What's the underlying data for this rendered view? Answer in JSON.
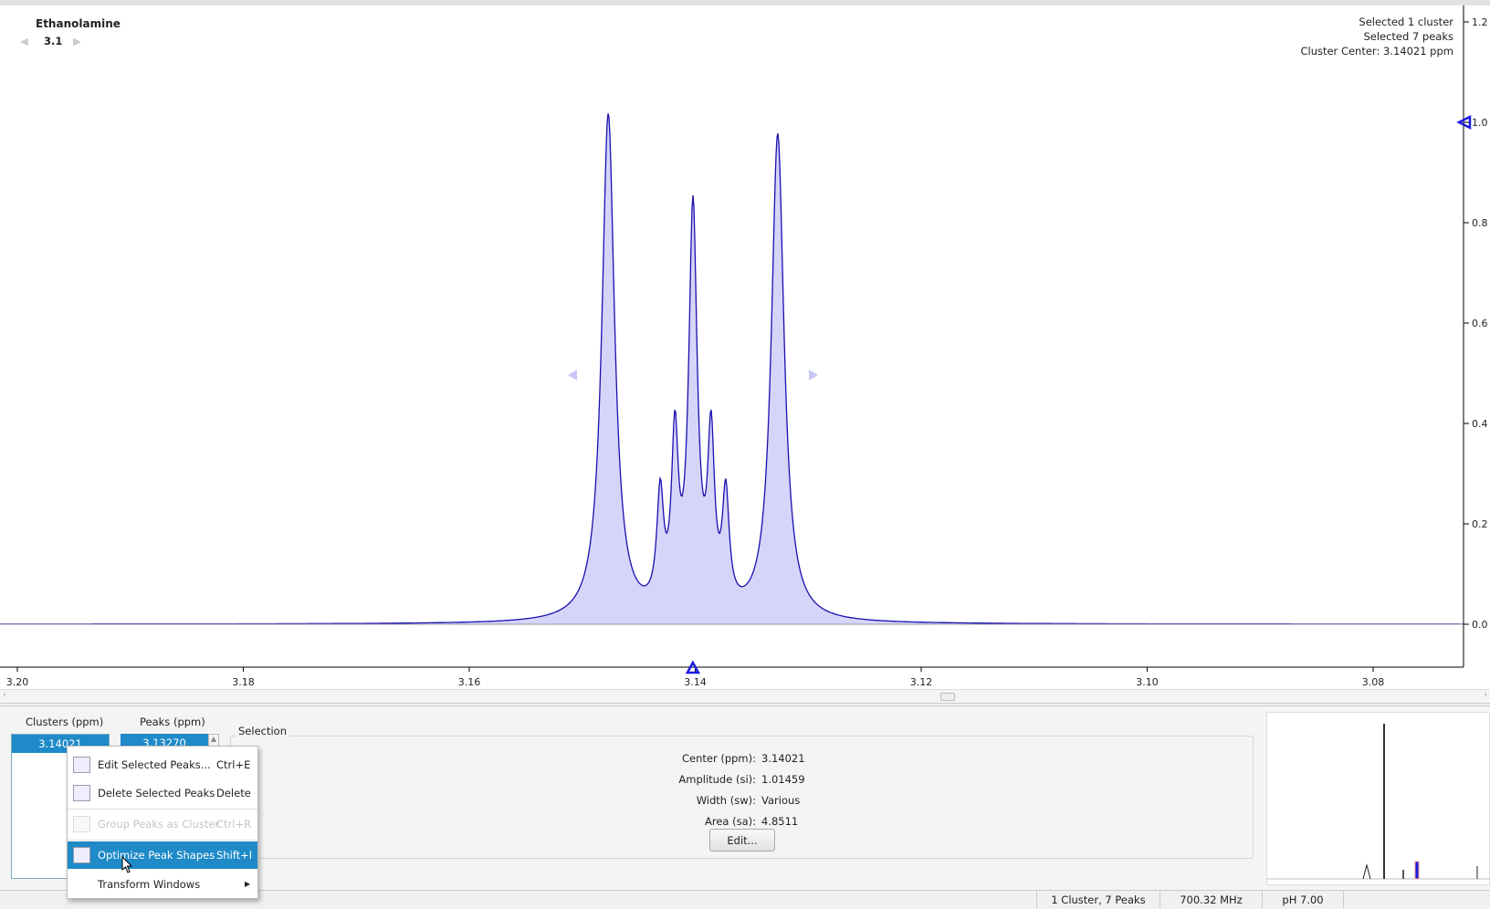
{
  "compound": {
    "name": "Ethanolamine",
    "cluster_nav": "3.1"
  },
  "info": {
    "line1": "Selected 1 cluster",
    "line2": "Selected 7 peaks",
    "line3": "Cluster Center: 3.14021 ppm"
  },
  "chart_data": {
    "type": "line",
    "xlabel": "",
    "ylabel": "",
    "xlim": [
      3.2,
      3.075
    ],
    "ylim": [
      0,
      1.25
    ],
    "x_ticks": [
      "3.20",
      "3.18",
      "3.16",
      "3.14",
      "3.12",
      "3.10",
      "3.08"
    ],
    "y_ticks": [
      "0.0",
      "0.2",
      "0.4",
      "0.6",
      "0.8",
      "1.0",
      "1.2"
    ],
    "peaks": [
      {
        "ppm": 3.1477,
        "amp": 1.01
      },
      {
        "ppm": 3.1431,
        "amp": 0.22
      },
      {
        "ppm": 3.1418,
        "amp": 0.33
      },
      {
        "ppm": 3.1402,
        "amp": 0.8
      },
      {
        "ppm": 3.1386,
        "amp": 0.33
      },
      {
        "ppm": 3.1373,
        "amp": 0.22
      },
      {
        "ppm": 3.1327,
        "amp": 0.97
      }
    ],
    "fill_color": "#d6d4f8",
    "line_color": "#1a0fb0",
    "marker_color": "#1a1ae0"
  },
  "bottom": {
    "clusters_header": "Clusters (ppm)",
    "peaks_header": "Peaks (ppm)",
    "cluster_value": "3.14021",
    "peak_value": "3.13270",
    "selection_title": "Selection",
    "fields": [
      {
        "label": "Center (ppm):",
        "value": "3.14021"
      },
      {
        "label": "Amplitude (si):",
        "value": "1.01459"
      },
      {
        "label": "Width (sw):",
        "value": "Various"
      },
      {
        "label": "Area (sa):",
        "value": "4.8511"
      }
    ],
    "edit_button": "Edit..."
  },
  "menu": {
    "items": [
      {
        "label": "Edit Selected Peaks...",
        "shortcut": "Ctrl+E"
      },
      {
        "label": "Delete Selected Peaks",
        "shortcut": "Delete"
      },
      {
        "label": "Group Peaks as Cluster",
        "shortcut": "Ctrl+R"
      },
      {
        "label": "Optimize Peak Shapes",
        "shortcut": "Shift+I"
      },
      {
        "label": "Transform Windows",
        "shortcut": ""
      }
    ]
  },
  "status": {
    "peaks": "1 Cluster, 7 Peaks",
    "freq": "700.32 MHz",
    "ph": "pH 7.00"
  }
}
